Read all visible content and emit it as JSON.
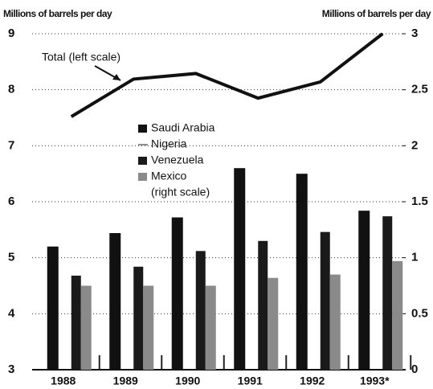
{
  "chart_data": {
    "type": "bar",
    "y_label": "Millions of barrels per day",
    "y2_label": "Millions of barrels per day",
    "annotation": "Total (left scale)",
    "legend_note": "(right scale)",
    "categories": [
      "1988",
      "1989",
      "1990",
      "1991",
      "1992",
      "1993*"
    ],
    "series": [
      {
        "name": "Total",
        "type": "line",
        "color": "#111",
        "axis": "y",
        "values": [
          7.52,
          8.19,
          8.29,
          7.85,
          8.14,
          9.0
        ]
      },
      {
        "name": "Saudi Arabia",
        "color": "#111",
        "axis": "y2",
        "values": [
          1.1,
          1.22,
          1.36,
          1.8,
          1.75,
          1.42
        ]
      },
      {
        "name": "Nigeria",
        "color": "#222",
        "axis": "y2",
        "values": [
          0.13,
          0.13,
          0.13,
          0.13,
          0.13,
          0.13
        ]
      },
      {
        "name": "Venezuela",
        "color": "#1a1a1a",
        "axis": "y2",
        "values": [
          0.84,
          0.92,
          1.06,
          1.15,
          1.23,
          1.37
        ]
      },
      {
        "name": "Mexico",
        "color": "#8a8a8a",
        "axis": "y2",
        "values": [
          0.75,
          0.75,
          0.75,
          0.82,
          0.85,
          0.97
        ]
      }
    ],
    "ylim": [
      3,
      9
    ],
    "yticks": [
      3,
      4,
      5,
      6,
      7,
      8,
      9
    ],
    "y2lim": [
      0,
      3
    ],
    "y2ticks": [
      0,
      0.5,
      1,
      1.5,
      2,
      2.5,
      3
    ],
    "grid": true
  }
}
